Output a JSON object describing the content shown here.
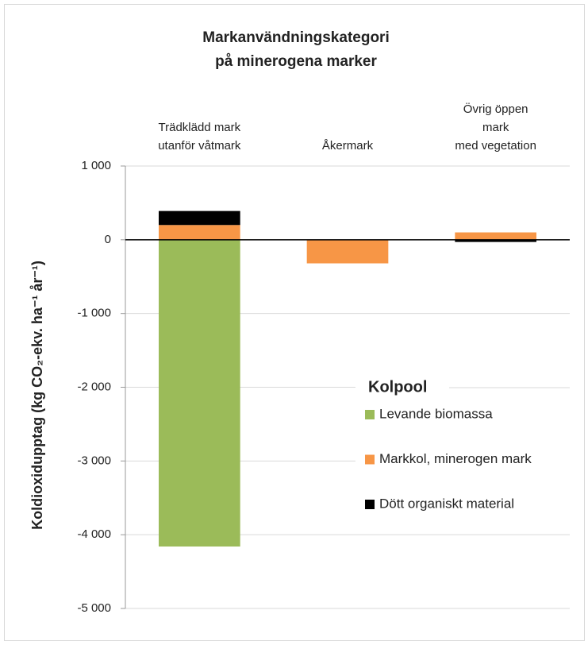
{
  "chart_data": {
    "type": "stacked_bar",
    "title": "Markanvändningskategori\npå minerogena marker",
    "y_label": "Koldioxidupptag (kg CO₂-ekv. ha⁻¹ år⁻¹)",
    "categories": [
      "Trädklädd mark\nutanför våtmark",
      "Åkermark",
      "Övrig öppen mark\nmed vegetation"
    ],
    "series": [
      {
        "name": "Levande biomassa",
        "color": "#9bbb59",
        "values": [
          -4160,
          0,
          0
        ]
      },
      {
        "name": "Markkol, minerogen mark",
        "color": "#f79646",
        "values": [
          200,
          -320,
          100
        ]
      },
      {
        "name": "Dött organiskt material",
        "color": "#000000",
        "values": [
          190,
          0,
          -30
        ]
      }
    ],
    "ylim": [
      -5000,
      1000
    ],
    "yticks": [
      {
        "value": -5000,
        "label": "-5 000"
      },
      {
        "value": -4000,
        "label": "-4 000"
      },
      {
        "value": -3000,
        "label": "-3 000"
      },
      {
        "value": -2000,
        "label": "-2 000"
      },
      {
        "value": -1000,
        "label": "-1 000"
      },
      0,
      {
        "value": 1000,
        "label": "1 000"
      }
    ],
    "grid": true,
    "legend_title": "Kolpool",
    "legend": "right"
  }
}
